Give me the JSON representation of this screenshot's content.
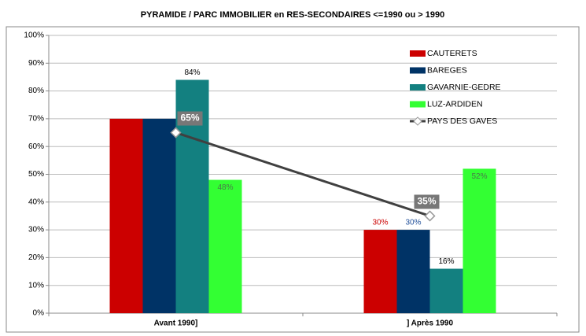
{
  "chart_data": {
    "type": "bar",
    "title": "PYRAMIDE / PARC IMMOBILIER en RES-SECONDAIRES <=1990 ou > 1990",
    "categories": [
      "Avant 1990]",
      "] Après 1990"
    ],
    "series": [
      {
        "name": "CAUTERETS",
        "color": "#cc0000",
        "values": [
          70,
          30
        ],
        "value_labels": [
          null,
          "30%"
        ]
      },
      {
        "name": "BAREGES",
        "color": "#003366",
        "values": [
          70,
          30
        ],
        "value_labels": [
          null,
          "30%"
        ]
      },
      {
        "name": "GAVARNIE-GEDRE",
        "color": "#138080",
        "values": [
          84,
          16
        ],
        "value_labels": [
          "84%",
          "16%"
        ]
      },
      {
        "name": "LUZ-ARDIDEN",
        "color": "#33ff33",
        "values": [
          48,
          52
        ],
        "value_labels": [
          "48%",
          "52%"
        ]
      },
      {
        "name": "PAYS DES GAVES",
        "type": "line",
        "color": "#404040",
        "values": [
          65,
          35
        ],
        "value_labels": [
          "65%",
          "35%"
        ]
      }
    ],
    "ylim": [
      0,
      100
    ],
    "yticks": [
      {
        "value": 0,
        "label": "0%"
      },
      {
        "value": 10,
        "label": "10%"
      },
      {
        "value": 20,
        "label": "20%"
      },
      {
        "value": 30,
        "label": "30%"
      },
      {
        "value": 40,
        "label": "40%"
      },
      {
        "value": 50,
        "label": "50%"
      },
      {
        "value": 60,
        "label": "60%"
      },
      {
        "value": 70,
        "label": "70%"
      },
      {
        "value": 80,
        "label": "80%"
      },
      {
        "value": 90,
        "label": "90%"
      },
      {
        "value": 100,
        "label": "100%"
      }
    ],
    "grid": true,
    "legend": "upper right"
  }
}
